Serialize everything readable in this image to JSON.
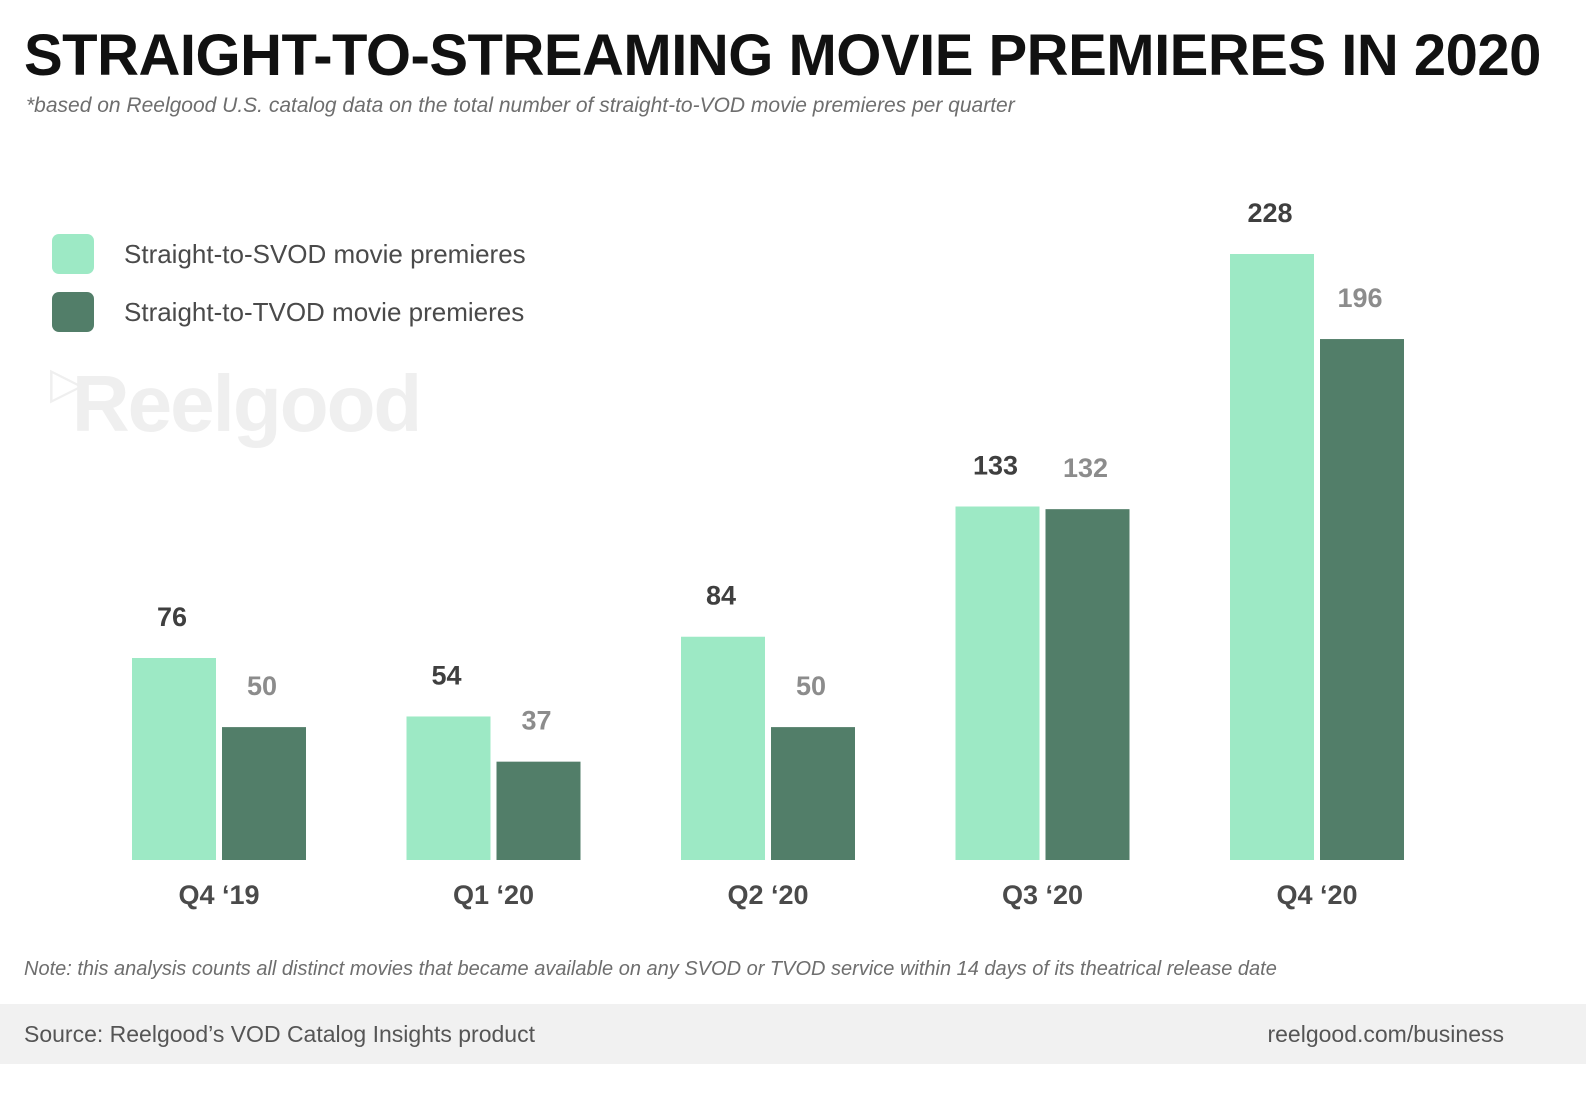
{
  "header": {
    "title": "STRAIGHT-TO-STREAMING MOVIE PREMIERES IN 2020",
    "subtitle": "*based on Reelgood U.S. catalog data on the total number of straight-to-VOD movie premieres per quarter"
  },
  "watermark": {
    "text": "Reelgood",
    "icon": "play-triangle-icon"
  },
  "note": "Note: this analysis counts all distinct movies that became available on any SVOD or TVOD service within 14 days of its theatrical release date",
  "footer": {
    "source": "Source: Reelgood’s VOD Catalog Insights product",
    "site": "reelgood.com/business"
  },
  "colors": {
    "svod": "#9de9c5",
    "tvod": "#527e69",
    "svod_label": "#3f3f3f",
    "tvod_label": "#8c8c8c",
    "tick_label": "#4a4a4a"
  },
  "chart_data": {
    "type": "bar",
    "categories": [
      "Q4 ‘19",
      "Q1 ‘20",
      "Q2 ‘20",
      "Q3 ‘20",
      "Q4 ‘20"
    ],
    "series": [
      {
        "name": "Straight-to-SVOD movie premieres",
        "values": [
          76,
          54,
          84,
          133,
          228
        ]
      },
      {
        "name": "Straight-to-TVOD movie premieres",
        "values": [
          50,
          37,
          50,
          132,
          196
        ]
      }
    ],
    "title": "STRAIGHT-TO-STREAMING MOVIE PREMIERES IN 2020",
    "xlabel": "",
    "ylabel": "",
    "ylim": [
      0,
      228
    ],
    "grid": false,
    "legend": "top-left",
    "data_labels": true
  }
}
